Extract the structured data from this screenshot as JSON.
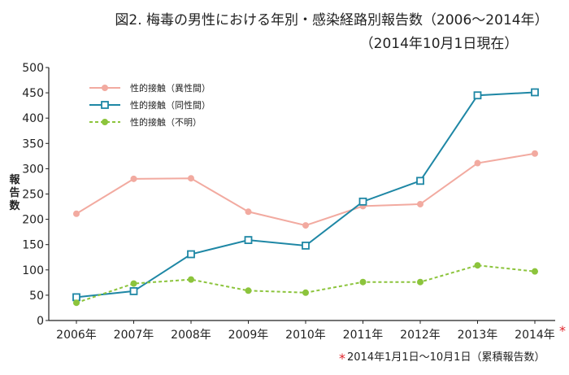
{
  "chart_data": {
    "type": "line",
    "title": "図2. 梅毒の男性における年別・感染経路別報告数（2006〜2014年）",
    "subtitle": "（2014年10月1日現在）",
    "ylabel": "報告数",
    "xlabel": "",
    "ylim": [
      0,
      500
    ],
    "yticks": [
      0,
      50,
      100,
      150,
      200,
      250,
      300,
      350,
      400,
      450,
      500
    ],
    "categories": [
      "2006年",
      "2007年",
      "2008年",
      "2009年",
      "2010年",
      "2011年",
      "2012年",
      "2013年",
      "2014年"
    ],
    "asterisk_mark": "*",
    "footnote": "2014年1月1日〜10月1日（累積報告数）",
    "grid": false,
    "legend_position": "top-left",
    "series": [
      {
        "name": "性的接触（異性間）",
        "color": "#f2aaa0",
        "dash": "solid",
        "marker": "circle",
        "values": [
          211,
          280,
          281,
          215,
          188,
          226,
          230,
          311,
          330
        ]
      },
      {
        "name": "性的接触（同性間）",
        "color": "#1e87a5",
        "dash": "solid",
        "marker": "square",
        "values": [
          46,
          58,
          131,
          159,
          148,
          235,
          276,
          445,
          451
        ]
      },
      {
        "name": "性的接触（不明）",
        "color": "#8cc43c",
        "dash": "dashed",
        "marker": "circle",
        "values": [
          35,
          73,
          81,
          59,
          55,
          76,
          76,
          109,
          97
        ]
      }
    ]
  }
}
